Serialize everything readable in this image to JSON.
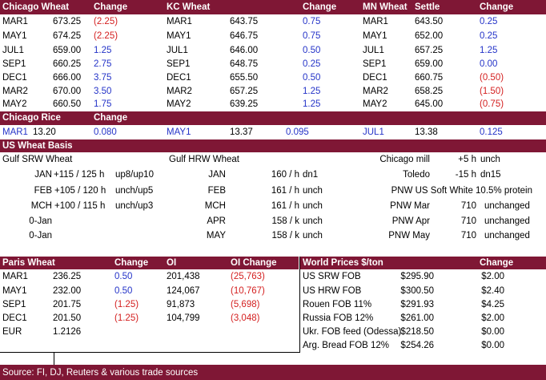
{
  "futures": {
    "chicago": {
      "title": "Chicago Wheat",
      "change_label": "Change",
      "rows": [
        {
          "month": "MAR1",
          "price": "673.25",
          "change": "(2.25)",
          "dir": "neg"
        },
        {
          "month": "MAY1",
          "price": "674.25",
          "change": "(2.25)",
          "dir": "neg"
        },
        {
          "month": "JUL1",
          "price": "659.00",
          "change": "1.25",
          "dir": "pos"
        },
        {
          "month": "SEP1",
          "price": "660.25",
          "change": "2.75",
          "dir": "pos"
        },
        {
          "month": "DEC1",
          "price": "666.00",
          "change": "3.75",
          "dir": "pos"
        },
        {
          "month": "MAR2",
          "price": "670.00",
          "change": "3.50",
          "dir": "pos"
        },
        {
          "month": "MAY2",
          "price": "660.50",
          "change": "1.75",
          "dir": "pos"
        }
      ]
    },
    "kc": {
      "title": "KC Wheat",
      "change_label": "Change",
      "rows": [
        {
          "month": "MAR1",
          "price": "643.75",
          "change": "0.75",
          "dir": "pos"
        },
        {
          "month": "MAY1",
          "price": "646.75",
          "change": "0.75",
          "dir": "pos"
        },
        {
          "month": "JUL1",
          "price": "646.00",
          "change": "0.50",
          "dir": "pos"
        },
        {
          "month": "SEP1",
          "price": "648.75",
          "change": "0.25",
          "dir": "pos"
        },
        {
          "month": "DEC1",
          "price": "655.50",
          "change": "0.50",
          "dir": "pos"
        },
        {
          "month": "MAR2",
          "price": "657.25",
          "change": "1.25",
          "dir": "pos"
        },
        {
          "month": "MAY2",
          "price": "639.25",
          "change": "1.25",
          "dir": "pos"
        }
      ]
    },
    "mn": {
      "title": "MN Wheat",
      "settle_label": "Settle",
      "change_label": "Change",
      "rows": [
        {
          "month": "MAR1",
          "price": "643.50",
          "change": "0.25",
          "dir": "pos"
        },
        {
          "month": "MAY1",
          "price": "652.00",
          "change": "0.25",
          "dir": "pos"
        },
        {
          "month": "JUL1",
          "price": "657.25",
          "change": "1.25",
          "dir": "pos"
        },
        {
          "month": "SEP1",
          "price": "659.00",
          "change": "0.00",
          "dir": "pos"
        },
        {
          "month": "DEC1",
          "price": "660.75",
          "change": "(0.50)",
          "dir": "neg"
        },
        {
          "month": "MAR2",
          "price": "658.25",
          "change": "(1.50)",
          "dir": "neg"
        },
        {
          "month": "MAY2",
          "price": "645.00",
          "change": "(0.75)",
          "dir": "neg"
        }
      ]
    }
  },
  "rice": {
    "title": "Chicago Rice",
    "change_label": "Change",
    "entries": [
      {
        "month": "MAR1",
        "price": "13.20",
        "change": "0.080"
      },
      {
        "month": "MAY1",
        "price": "13.37",
        "change": "0.095"
      },
      {
        "month": "JUL1",
        "price": "13.38",
        "change": "0.125"
      }
    ]
  },
  "basis": {
    "title": "US Wheat Basis",
    "srw_header": "Gulf SRW Wheat",
    "hrw_header": "Gulf HRW Wheat",
    "srw": [
      {
        "month": "JAN",
        "value": "+115 /  125 h",
        "note": "up8/up10"
      },
      {
        "month": "FEB",
        "value": "+105 / 120 h",
        "note": "unch/up5"
      },
      {
        "month": "MCH",
        "value": "+100 / 115 h",
        "note": "unch/up3"
      },
      {
        "month": "0-Jan",
        "value": "",
        "note": ""
      },
      {
        "month": "0-Jan",
        "value": "",
        "note": ""
      }
    ],
    "hrw": [
      {
        "month": "JAN",
        "value": "160 / h",
        "note": "dn1"
      },
      {
        "month": "FEB",
        "value": "161 / h",
        "note": "unch"
      },
      {
        "month": "MCH",
        "value": "161 / h",
        "note": "unch"
      },
      {
        "month": "APR",
        "value": "158 / k",
        "note": "unch"
      },
      {
        "month": "MAY",
        "value": "158 / k",
        "note": "unch"
      }
    ],
    "other": [
      {
        "label": "Chicago mill",
        "value": "+5 h",
        "note": "unch"
      },
      {
        "label": "Toledo",
        "value": "-15 h",
        "note": "dn15"
      },
      {
        "label": "PNW US Soft White 10.5% protein",
        "value": "",
        "note": ""
      },
      {
        "label": "PNW Mar",
        "value": "710",
        "note": "unchanged"
      },
      {
        "label": "PNW Apr",
        "value": "710",
        "note": "unchanged"
      },
      {
        "label": "PNW May",
        "value": "710",
        "note": "unchanged"
      }
    ]
  },
  "paris": {
    "title": "Paris Wheat",
    "change_label": "Change",
    "oi_label": "OI",
    "oi_change_label": "OI Change",
    "rows": [
      {
        "month": "MAR1",
        "price": "236.25",
        "change": "0.50",
        "dir": "pos",
        "oi": "201,438",
        "oi_change": "(25,763)"
      },
      {
        "month": "MAY1",
        "price": "232.00",
        "change": "0.50",
        "dir": "pos",
        "oi": "124,067",
        "oi_change": "(10,767)"
      },
      {
        "month": "SEP1",
        "price": "201.75",
        "change": "(1.25)",
        "dir": "neg",
        "oi": "91,873",
        "oi_change": "(5,698)"
      },
      {
        "month": "DEC1",
        "price": "201.50",
        "change": "(1.25)",
        "dir": "neg",
        "oi": "104,799",
        "oi_change": "(3,048)"
      }
    ],
    "eur_label": "EUR",
    "eur_value": "1.2126"
  },
  "world": {
    "title": "World Prices $/ton",
    "change_label": "Change",
    "rows": [
      {
        "label": "US SRW FOB",
        "price": "$295.90",
        "change": "$2.00"
      },
      {
        "label": "US HRW FOB",
        "price": "$300.50",
        "change": "$2.40"
      },
      {
        "label": "Rouen FOB 11%",
        "price": "$291.93",
        "change": "$4.25"
      },
      {
        "label": "Russia FOB 12%",
        "price": "$261.00",
        "change": "$2.00"
      },
      {
        "label": "Ukr. FOB feed (Odessa)",
        "price": "$218.50",
        "change": "$0.00"
      },
      {
        "label": "Arg. Bread FOB 12%",
        "price": "$254.26",
        "change": "$0.00"
      }
    ]
  },
  "footer": {
    "source": "Source: FI, DJ, Reuters & various trade sources"
  },
  "colors": {
    "header_bg": "#7f1735",
    "positive": "#2433c8",
    "negative": "#d42020"
  }
}
